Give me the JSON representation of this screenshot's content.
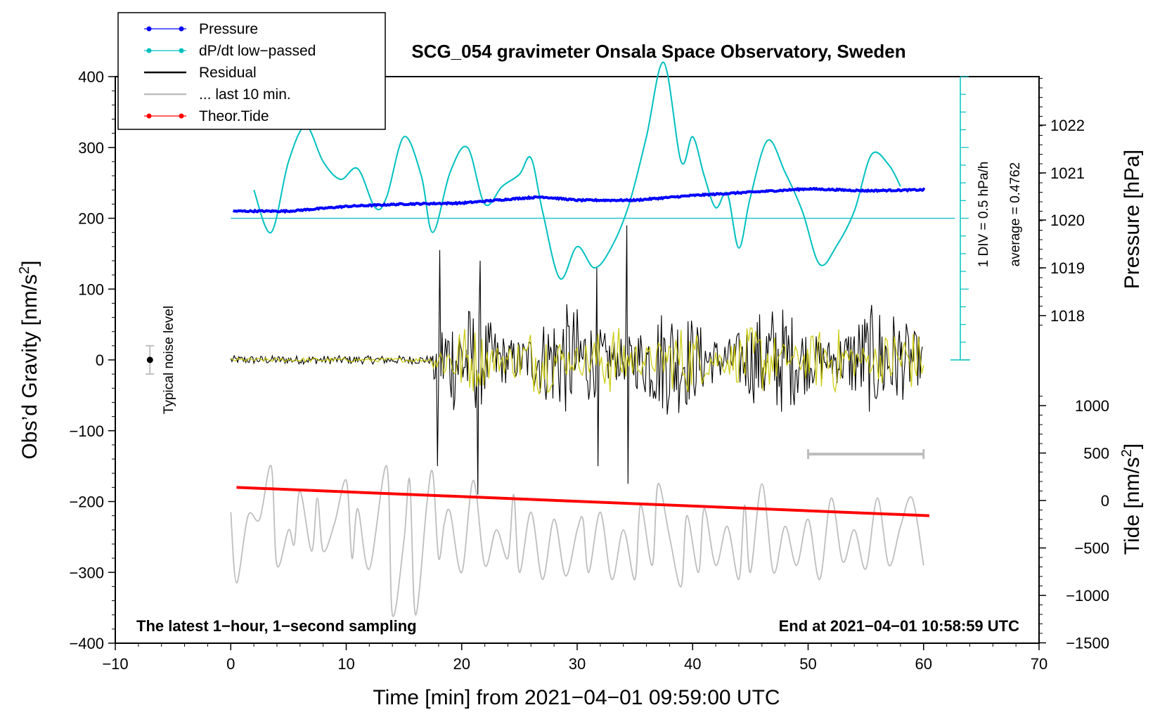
{
  "chart_data": {
    "type": "line",
    "title": "SCG_054 gravimeter Onsala Space Observatory, Sweden",
    "xlabel": "Time [min] from 2021−04−01 09:59:00 UTC",
    "ylabel_left": "Obs’d Gravity [nm/s²]",
    "ylabel_right_top": "Pressure [hPa]",
    "ylabel_right_bottom": "Tide [nm/s²]",
    "xlim": [
      -10,
      70
    ],
    "ylim": [
      -400,
      400
    ],
    "x_ticks": [
      "−10",
      "0",
      "10",
      "20",
      "30",
      "40",
      "50",
      "60",
      "70"
    ],
    "y_ticks": [
      "400",
      "300",
      "200",
      "100",
      "0",
      "−100",
      "−200",
      "−300",
      "−400"
    ],
    "pressure_ticks": [
      "1022",
      "1021",
      "1020",
      "1019",
      "1018"
    ],
    "tide_ticks": [
      "1000",
      "500",
      "0",
      "−500",
      "−1000",
      "−1500"
    ],
    "pressure_axis": {
      "range": [
        1016,
        1022.7
      ],
      "ref": 1020
    },
    "tide_axis": {
      "range": [
        -1500,
        1500
      ]
    },
    "legend": [
      {
        "label": "Pressure",
        "color": "#0000ff",
        "marker": true
      },
      {
        "label": "dP/dt low−passed",
        "color": "#00c0c0",
        "marker": true
      },
      {
        "label": "Residual",
        "color": "#000000",
        "marker": false
      },
      {
        "label": "... last 10 min.",
        "color": "#bebebe",
        "marker": false
      },
      {
        "label": "Theor.Tide",
        "color": "#ff0000",
        "marker": true
      }
    ],
    "annotations": {
      "noise": "Typical noise level",
      "div": "1 DIV = 0.5 hPa/h",
      "average": "average = 0.4762",
      "bottom_left": "The latest 1−hour, 1−second sampling",
      "bottom_right": "End at 2021−04−01 10:58:59 UTC"
    },
    "series": [
      {
        "name": "Pressure",
        "unit": "hPa",
        "color": "#0000ff",
        "x": [
          0.2,
          5,
          10,
          15,
          20,
          25,
          27,
          30,
          35,
          40,
          45,
          50,
          55,
          60.2
        ],
        "values": [
          1020.15,
          1020.15,
          1020.25,
          1020.3,
          1020.32,
          1020.42,
          1020.45,
          1020.38,
          1020.38,
          1020.48,
          1020.55,
          1020.62,
          1020.58,
          1020.6
        ]
      },
      {
        "name": "dP/dt low−passed",
        "unit": "gravity axis",
        "color": "#00c0c0",
        "x": [
          2,
          3.5,
          5,
          6.5,
          8,
          9.5,
          11,
          12.5,
          13.5,
          15,
          16.5,
          17.5,
          19,
          20.5,
          22,
          23.5,
          25,
          26,
          27,
          28.5,
          30,
          31.5,
          33,
          34.5,
          36,
          37.5,
          39,
          40,
          41,
          42,
          43,
          44,
          45,
          46.5,
          48,
          49.5,
          51,
          52.5,
          54,
          55.5,
          57,
          58
        ],
        "values": [
          240,
          180,
          280,
          330,
          280,
          255,
          270,
          215,
          230,
          315,
          260,
          180,
          265,
          300,
          220,
          245,
          262,
          285,
          210,
          115,
          160,
          130,
          160,
          220,
          315,
          420,
          280,
          315,
          260,
          215,
          235,
          158,
          230,
          310,
          265,
          210,
          135,
          162,
          210,
          290,
          275,
          245
        ]
      },
      {
        "name": "Residual",
        "unit": "nm/s²",
        "color": "#000000",
        "generated": "deterministic noise; quiet 0–17.5 min, then strong oscillation"
      },
      {
        "name": "Residual (filtered)",
        "unit": "nm/s²",
        "color": "#c8c800",
        "generated": "deterministic noise"
      },
      {
        "name": "... last 10 min.",
        "unit": "nm/s²",
        "color": "#bebebe",
        "x": [
          0,
          0.5,
          1.5,
          2.5,
          3.5,
          4,
          5,
          5.5,
          6,
          7,
          7.5,
          8,
          9,
          10,
          10.5,
          11,
          12,
          13.5,
          14,
          15,
          15.5,
          16,
          17,
          17.5,
          18,
          18.5,
          19,
          20,
          21,
          22,
          23,
          24,
          24.5,
          25,
          26,
          27,
          28,
          29,
          30,
          30.5,
          31,
          32,
          33,
          34,
          35,
          35.5,
          36.5,
          37,
          38,
          39,
          39.5,
          40.5,
          41,
          42,
          43,
          44,
          44.5,
          45,
          46,
          47,
          48,
          49,
          50,
          51,
          52,
          53,
          54,
          55,
          56,
          57,
          58,
          59,
          60
        ],
        "values": [
          -215,
          -315,
          -220,
          -225,
          -150,
          -290,
          -240,
          -260,
          -185,
          -270,
          -195,
          -270,
          -230,
          -170,
          -280,
          -210,
          -295,
          -150,
          -360,
          -255,
          -170,
          -360,
          -200,
          -160,
          -280,
          -230,
          -215,
          -300,
          -170,
          -290,
          -240,
          -280,
          -190,
          -300,
          -215,
          -310,
          -225,
          -305,
          -240,
          -225,
          -300,
          -215,
          -310,
          -240,
          -310,
          -205,
          -290,
          -175,
          -250,
          -320,
          -220,
          -300,
          -210,
          -290,
          -235,
          -310,
          -205,
          -300,
          -175,
          -300,
          -235,
          -290,
          -225,
          -310,
          -195,
          -285,
          -240,
          -295,
          -195,
          -290,
          -235,
          -195,
          -290
        ]
      },
      {
        "name": "Theor.Tide",
        "unit": "gravity axis",
        "color": "#ff0000",
        "x": [
          0.5,
          60.5
        ],
        "values": [
          -180,
          -220
        ]
      }
    ],
    "noise_bar": {
      "x": -7,
      "value": 0,
      "half_range": 20
    },
    "last10_bar": {
      "x_start": 50,
      "x_end": 60,
      "y": -133
    }
  }
}
